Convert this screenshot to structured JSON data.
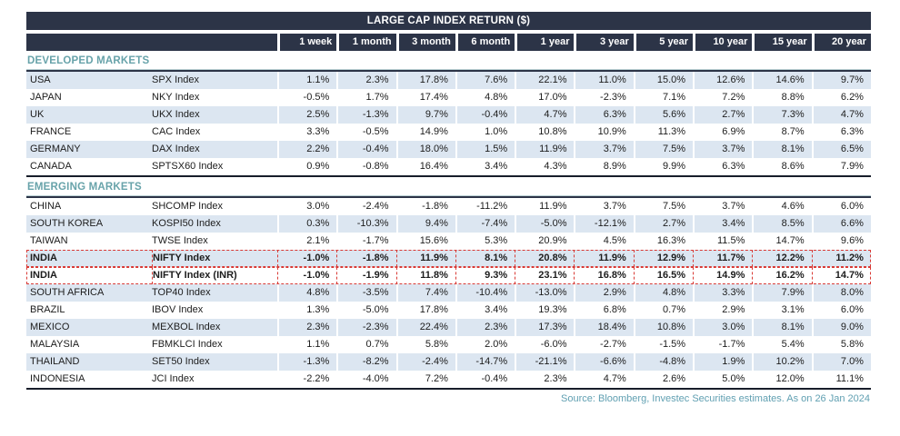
{
  "title": "LARGE CAP INDEX RETURN ($)",
  "columns": [
    "1 week",
    "1 month",
    "3 month",
    "6 month",
    "1 year",
    "3 year",
    "5 year",
    "10 year",
    "15 year",
    "20 year"
  ],
  "sections": [
    {
      "label": "DEVELOPED MARKETS",
      "rows": [
        {
          "country": "USA",
          "index": "SPX Index",
          "striped": true,
          "highlighted": false,
          "values": [
            "1.1%",
            "2.3%",
            "17.8%",
            "7.6%",
            "22.1%",
            "11.0%",
            "15.0%",
            "12.6%",
            "14.6%",
            "9.7%"
          ]
        },
        {
          "country": "JAPAN",
          "index": "NKY Index",
          "striped": false,
          "highlighted": false,
          "values": [
            "-0.5%",
            "1.7%",
            "17.4%",
            "4.8%",
            "17.0%",
            "-2.3%",
            "7.1%",
            "7.2%",
            "8.8%",
            "6.2%"
          ]
        },
        {
          "country": "UK",
          "index": "UKX Index",
          "striped": true,
          "highlighted": false,
          "values": [
            "2.5%",
            "-1.3%",
            "9.7%",
            "-0.4%",
            "4.7%",
            "6.3%",
            "5.6%",
            "2.7%",
            "7.3%",
            "4.7%"
          ]
        },
        {
          "country": "FRANCE",
          "index": "CAC Index",
          "striped": false,
          "highlighted": false,
          "values": [
            "3.3%",
            "-0.5%",
            "14.9%",
            "1.0%",
            "10.8%",
            "10.9%",
            "11.3%",
            "6.9%",
            "8.7%",
            "6.3%"
          ]
        },
        {
          "country": "GERMANY",
          "index": "DAX Index",
          "striped": true,
          "highlighted": false,
          "values": [
            "2.2%",
            "-0.4%",
            "18.0%",
            "1.5%",
            "11.9%",
            "3.7%",
            "7.5%",
            "3.7%",
            "8.1%",
            "6.5%"
          ]
        },
        {
          "country": "CANADA",
          "index": "SPTSX60 Index",
          "striped": false,
          "highlighted": false,
          "values": [
            "0.9%",
            "-0.8%",
            "16.4%",
            "3.4%",
            "4.3%",
            "8.9%",
            "9.9%",
            "6.3%",
            "8.6%",
            "7.9%"
          ]
        }
      ]
    },
    {
      "label": "EMERGING MARKETS",
      "rows": [
        {
          "country": "CHINA",
          "index": "SHCOMP Index",
          "striped": false,
          "highlighted": false,
          "values": [
            "3.0%",
            "-2.4%",
            "-1.8%",
            "-11.2%",
            "11.9%",
            "3.7%",
            "7.5%",
            "3.7%",
            "4.6%",
            "6.0%"
          ]
        },
        {
          "country": "SOUTH KOREA",
          "index": "KOSPI50 Index",
          "striped": true,
          "highlighted": false,
          "values": [
            "0.3%",
            "-10.3%",
            "9.4%",
            "-7.4%",
            "-5.0%",
            "-12.1%",
            "2.7%",
            "3.4%",
            "8.5%",
            "6.6%"
          ]
        },
        {
          "country": "TAIWAN",
          "index": "TWSE Index",
          "striped": false,
          "highlighted": false,
          "values": [
            "2.1%",
            "-1.7%",
            "15.6%",
            "5.3%",
            "20.9%",
            "4.5%",
            "16.3%",
            "11.5%",
            "14.7%",
            "9.6%"
          ]
        },
        {
          "country": "INDIA",
          "index": "NIFTY Index",
          "striped": true,
          "highlighted": true,
          "values": [
            "-1.0%",
            "-1.8%",
            "11.9%",
            "8.1%",
            "20.8%",
            "11.9%",
            "12.9%",
            "11.7%",
            "12.2%",
            "11.2%"
          ]
        },
        {
          "country": "INDIA",
          "index": "NIFTY Index (INR)",
          "striped": false,
          "highlighted": true,
          "values": [
            "-1.0%",
            "-1.9%",
            "11.8%",
            "9.3%",
            "23.1%",
            "16.8%",
            "16.5%",
            "14.9%",
            "16.2%",
            "14.7%"
          ]
        },
        {
          "country": "SOUTH AFRICA",
          "index": "TOP40 Index",
          "striped": true,
          "highlighted": false,
          "values": [
            "4.8%",
            "-3.5%",
            "7.4%",
            "-10.4%",
            "-13.0%",
            "2.9%",
            "4.8%",
            "3.3%",
            "7.9%",
            "8.0%"
          ]
        },
        {
          "country": "BRAZIL",
          "index": "IBOV Index",
          "striped": false,
          "highlighted": false,
          "values": [
            "1.3%",
            "-5.0%",
            "17.8%",
            "3.4%",
            "19.3%",
            "6.8%",
            "0.7%",
            "2.9%",
            "3.1%",
            "6.0%"
          ]
        },
        {
          "country": "MEXICO",
          "index": "MEXBOL Index",
          "striped": true,
          "highlighted": false,
          "values": [
            "2.3%",
            "-2.3%",
            "22.4%",
            "2.3%",
            "17.3%",
            "18.4%",
            "10.8%",
            "3.0%",
            "8.1%",
            "9.0%"
          ]
        },
        {
          "country": "MALAYSIA",
          "index": "FBMKLCI Index",
          "striped": false,
          "highlighted": false,
          "values": [
            "1.1%",
            "0.7%",
            "5.8%",
            "2.0%",
            "-6.0%",
            "-2.7%",
            "-1.5%",
            "-1.7%",
            "5.4%",
            "5.8%"
          ]
        },
        {
          "country": "THAILAND",
          "index": "SET50 Index",
          "striped": true,
          "highlighted": false,
          "values": [
            "-1.3%",
            "-8.2%",
            "-2.4%",
            "-14.7%",
            "-21.1%",
            "-6.6%",
            "-4.8%",
            "1.9%",
            "10.2%",
            "7.0%"
          ]
        },
        {
          "country": "INDONESIA",
          "index": "JCI Index",
          "striped": false,
          "highlighted": false,
          "values": [
            "-2.2%",
            "-4.0%",
            "7.2%",
            "-0.4%",
            "2.3%",
            "4.7%",
            "2.6%",
            "5.0%",
            "12.0%",
            "11.1%"
          ]
        }
      ]
    }
  ],
  "source": "Source: Bloomberg, Investec Securities estimates. As on 26 Jan 2024",
  "colors": {
    "header_navy": "#2c3447",
    "section_teal": "#68a3aa",
    "row_stripe_blue": "#dce6f1",
    "highlight_red": "#d93a35",
    "source_text": "#61a0b2"
  }
}
